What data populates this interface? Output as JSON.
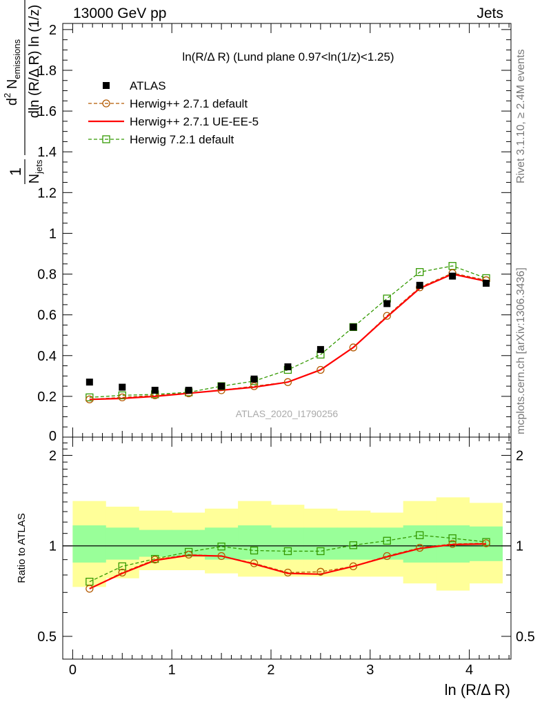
{
  "header": {
    "energy_label": "13000 GeV pp",
    "process_label": "Jets"
  },
  "side_labels": {
    "rivet": "Rivet 3.1.10, ≥ 2.4M events",
    "mcplots": "mcplots.cern.ch [arXiv:1306.3436]"
  },
  "chart_data": {
    "type": "line",
    "title": "ln(R/Δ R) (Lund plane 0.97<ln(1/z)<1.25)",
    "watermark": "ATLAS_2020_I1790256",
    "xlabel": "ln (R/Δ R)",
    "ylabel_top": "1/N_jets dN_emissions / dln(R/ΔR) ln(1/z)",
    "ylabel_ratio": "Ratio to ATLAS",
    "xlim": [
      -0.1,
      4.42
    ],
    "ylim_main": [
      0,
      2.03
    ],
    "ylim_ratio": [
      0.42,
      2.3
    ],
    "xticks": [
      0,
      1,
      2,
      3,
      4
    ],
    "yticks_main": [
      0,
      0.2,
      0.4,
      0.6,
      0.8,
      1,
      1.2,
      1.4,
      1.6,
      1.8,
      2
    ],
    "yticks_ratio": [
      0.5,
      1,
      2
    ],
    "x": [
      0.17,
      0.5,
      0.83,
      1.17,
      1.5,
      1.83,
      2.17,
      2.5,
      2.83,
      3.17,
      3.5,
      3.83,
      4.17
    ],
    "bin_edges": [
      0,
      0.333,
      0.667,
      1.0,
      1.333,
      1.667,
      2.0,
      2.333,
      2.667,
      3.0,
      3.333,
      3.667,
      4.0,
      4.333
    ],
    "series": [
      {
        "name": "ATLAS",
        "color": "#000000",
        "style": "marker-square-filled",
        "values": [
          0.27,
          0.245,
          0.23,
          0.23,
          0.25,
          0.285,
          0.345,
          0.43,
          0.54,
          0.655,
          0.745,
          0.79,
          0.755
        ]
      },
      {
        "name": "Herwig++ 2.7.1 default",
        "color": "#b35900",
        "style": "dashed-circle",
        "values": [
          0.185,
          0.195,
          0.205,
          0.215,
          0.23,
          0.25,
          0.27,
          0.33,
          0.44,
          0.595,
          0.735,
          0.805,
          0.77
        ]
      },
      {
        "name": "Herwig++ 2.7.1 UE-EE-5",
        "color": "#ff0000",
        "style": "solid",
        "values": [
          0.185,
          0.19,
          0.2,
          0.215,
          0.23,
          0.245,
          0.27,
          0.33,
          0.44,
          0.59,
          0.73,
          0.8,
          0.765
        ]
      },
      {
        "name": "Herwig 7.2.1 default",
        "color": "#339900",
        "style": "dashed-square",
        "values": [
          0.195,
          0.205,
          0.21,
          0.22,
          0.25,
          0.275,
          0.33,
          0.405,
          0.54,
          0.68,
          0.81,
          0.84,
          0.78
        ]
      }
    ],
    "ratio_series": [
      {
        "name": "Herwig++ 2.7.1 default",
        "values": [
          0.72,
          0.815,
          0.9,
          0.935,
          0.925,
          0.875,
          0.815,
          0.82,
          0.855,
          0.925,
          0.985,
          1.015,
          1.02
        ]
      },
      {
        "name": "Herwig++ 2.7.1 UE-EE-5",
        "values": [
          0.72,
          0.81,
          0.895,
          0.93,
          0.925,
          0.87,
          0.81,
          0.805,
          0.855,
          0.92,
          0.98,
          1.01,
          1.015
        ]
      },
      {
        "name": "Herwig 7.2.1 default",
        "values": [
          0.76,
          0.855,
          0.905,
          0.955,
          0.995,
          0.965,
          0.96,
          0.96,
          1.005,
          1.04,
          1.085,
          1.06,
          1.03
        ]
      }
    ],
    "ratio_bands": {
      "inner_color": "#99ff99",
      "outer_color": "#ffff99",
      "inner": [
        [
          0.88,
          1.17
        ],
        [
          0.9,
          1.15
        ],
        [
          0.92,
          1.13
        ],
        [
          0.92,
          1.13
        ],
        [
          0.9,
          1.15
        ],
        [
          0.9,
          1.17
        ],
        [
          0.9,
          1.15
        ],
        [
          0.9,
          1.15
        ],
        [
          0.9,
          1.15
        ],
        [
          0.9,
          1.15
        ],
        [
          0.88,
          1.17
        ],
        [
          0.88,
          1.17
        ],
        [
          0.89,
          1.16
        ]
      ],
      "outer": [
        [
          0.73,
          1.41
        ],
        [
          0.78,
          1.35
        ],
        [
          0.83,
          1.31
        ],
        [
          0.83,
          1.29
        ],
        [
          0.81,
          1.33
        ],
        [
          0.79,
          1.41
        ],
        [
          0.79,
          1.37
        ],
        [
          0.79,
          1.33
        ],
        [
          0.79,
          1.31
        ],
        [
          0.79,
          1.29
        ],
        [
          0.75,
          1.41
        ],
        [
          0.71,
          1.45
        ],
        [
          0.75,
          1.39
        ]
      ]
    },
    "legend_position": "top-left",
    "grid": false
  }
}
